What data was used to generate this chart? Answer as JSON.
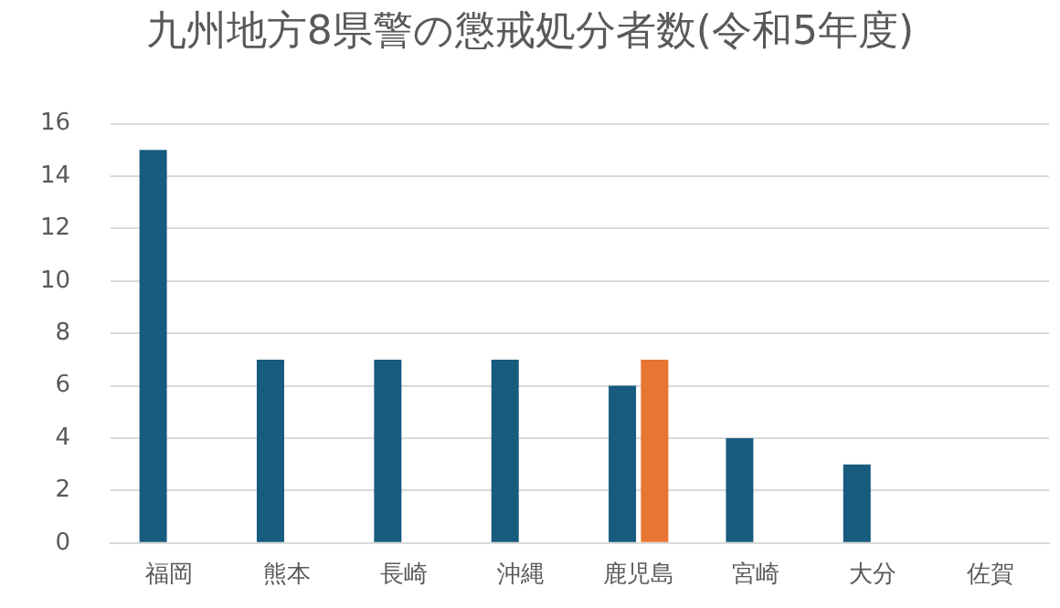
{
  "chart_data": {
    "type": "bar",
    "title": "九州地方8県警の懲戒処分者数(令和5年度)",
    "categories": [
      "福岡",
      "熊本",
      "長崎",
      "沖縄",
      "鹿児島",
      "宮崎",
      "大分",
      "佐賀"
    ],
    "series": [
      {
        "color": "#175b7f",
        "values": [
          15,
          7,
          7,
          7,
          6,
          4,
          3,
          0
        ]
      },
      {
        "color": "#e87532",
        "values": [
          null,
          null,
          null,
          null,
          7,
          null,
          null,
          null
        ]
      }
    ],
    "ylim": [
      0,
      16
    ],
    "yticks": [
      0,
      2,
      4,
      6,
      8,
      10,
      12,
      14,
      16
    ],
    "grid": "y",
    "legend": false
  }
}
